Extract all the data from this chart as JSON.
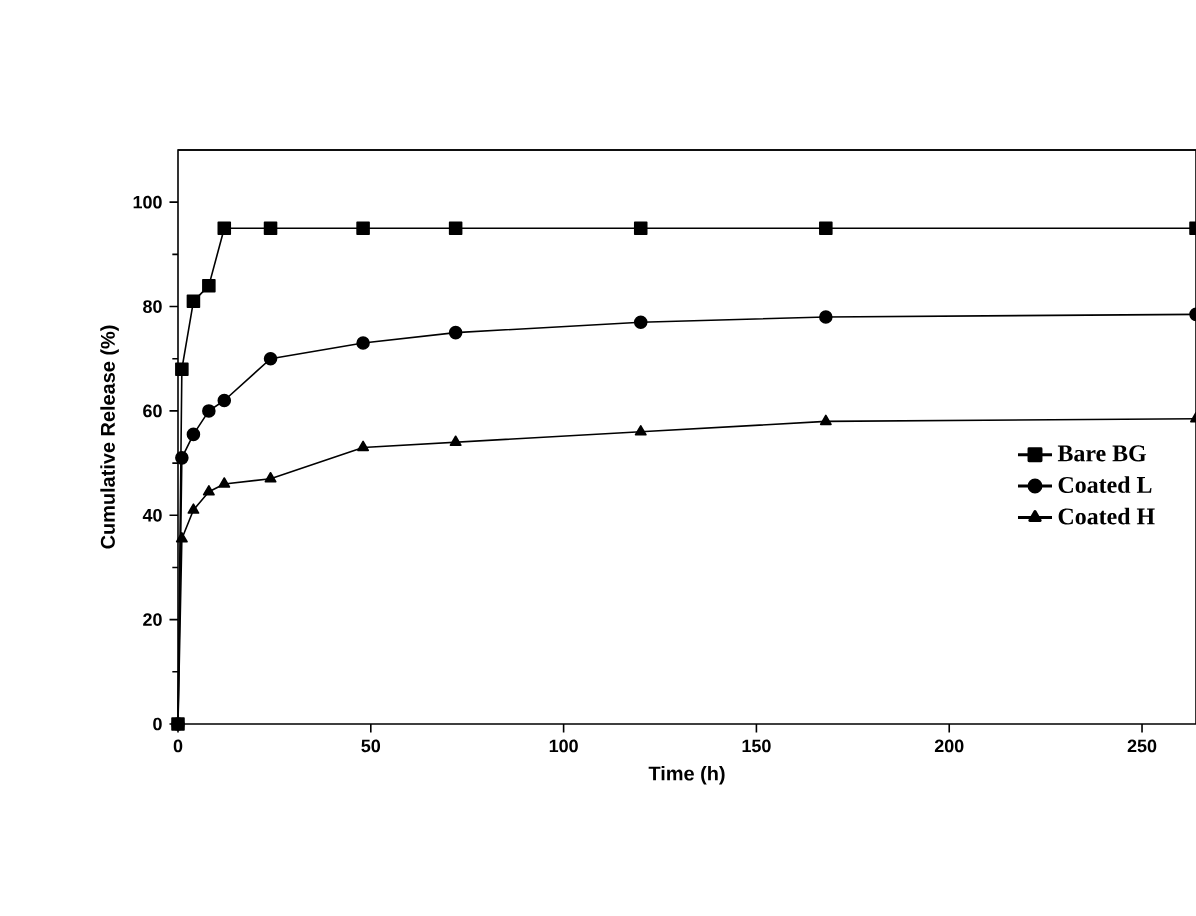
{
  "chart_data": {
    "type": "line",
    "xlabel": "Time (h)",
    "ylabel": "Cumulative Release (%)",
    "x": [
      0,
      1,
      4,
      8,
      12,
      24,
      48,
      72,
      120,
      168,
      264
    ],
    "series": [
      {
        "name": "Bare BG",
        "color": "#000000",
        "marker": "square",
        "values": [
          0,
          68,
          81,
          84,
          95,
          95,
          95,
          95,
          95,
          95,
          95
        ]
      },
      {
        "name": "Coated L",
        "color": "#000000",
        "marker": "circle",
        "values": [
          0,
          51,
          55.5,
          60,
          62,
          70,
          73,
          75,
          77,
          78,
          78.5
        ]
      },
      {
        "name": "Coated H",
        "color": "#000000",
        "marker": "triangle",
        "values": [
          0,
          35.5,
          41,
          44.5,
          46,
          47,
          53,
          54,
          56,
          58,
          58.5
        ]
      }
    ],
    "xlim": [
      0,
      264
    ],
    "ylim": [
      0,
      110
    ],
    "xticks": [
      0,
      50,
      100,
      150,
      200,
      250
    ],
    "yticks": [
      0,
      20,
      40,
      60,
      80,
      100
    ],
    "grid": false,
    "legend": "right",
    "line_style": "solid"
  }
}
